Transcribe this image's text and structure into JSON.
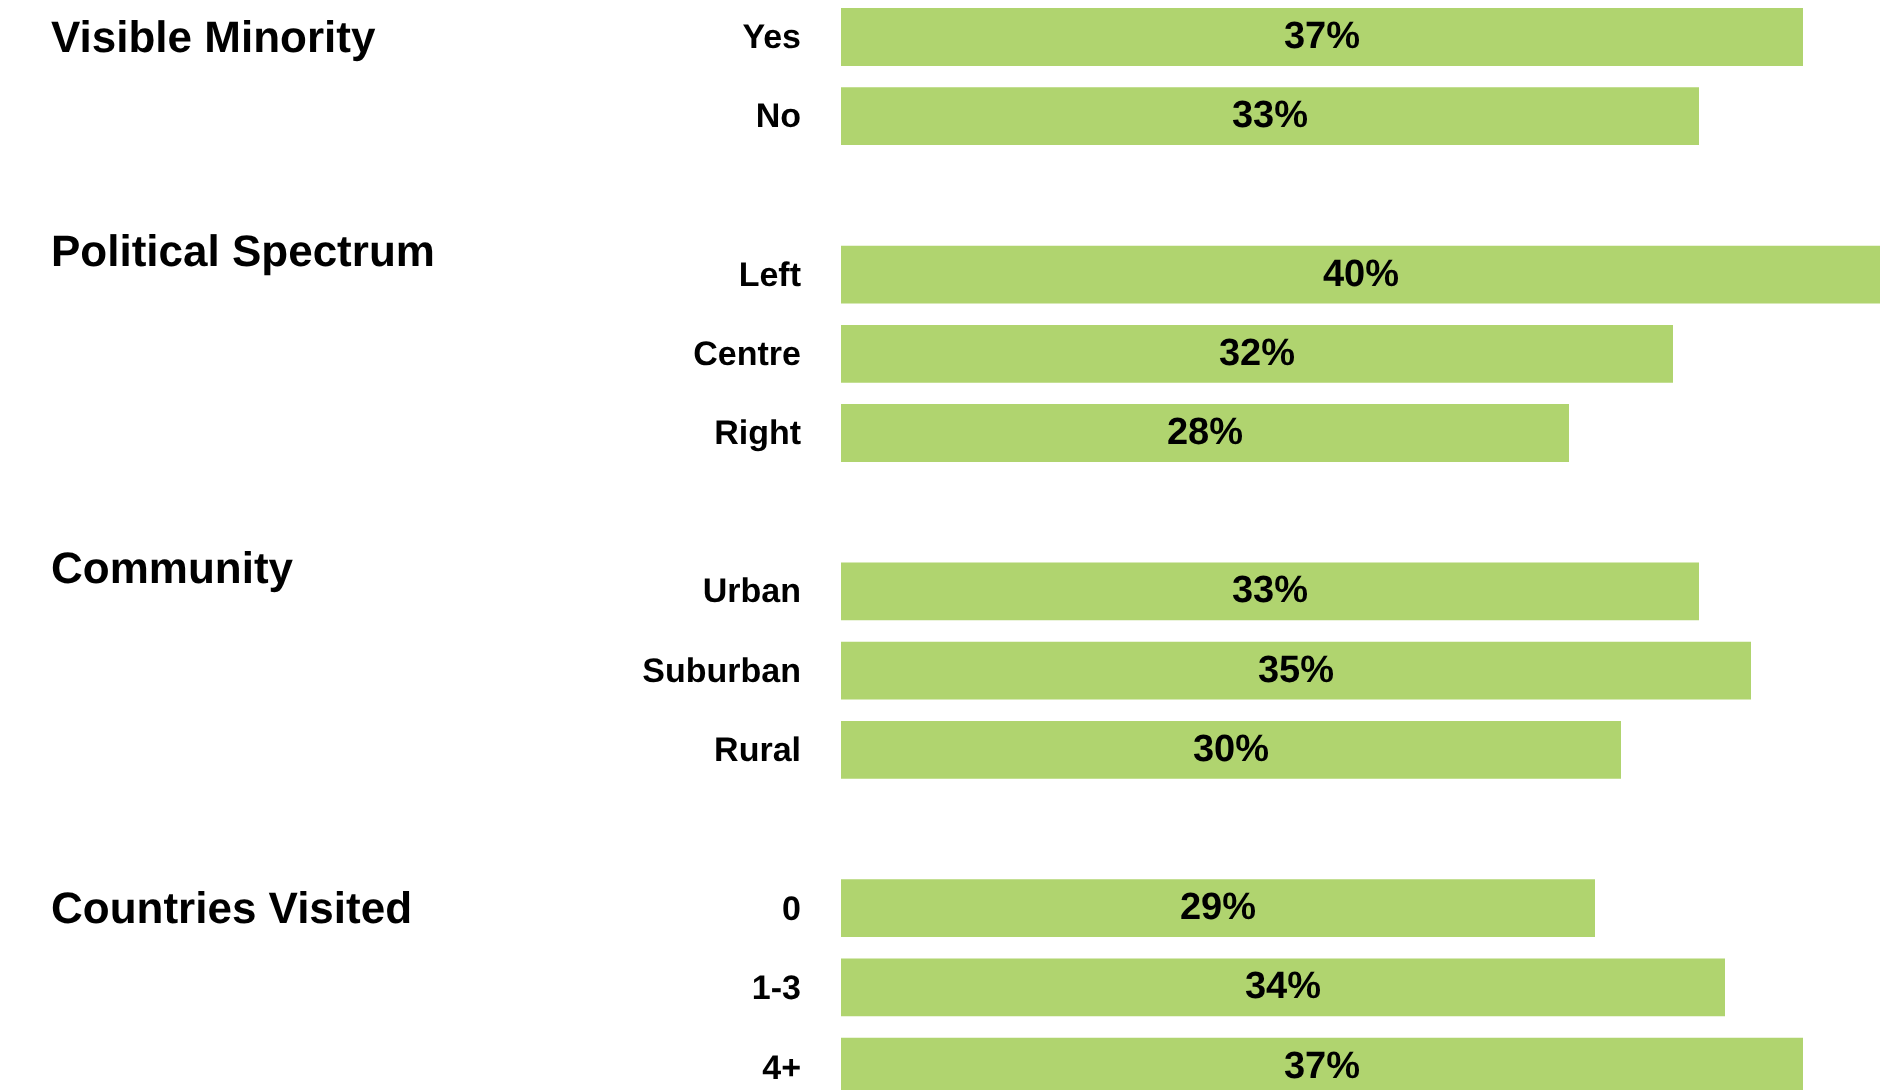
{
  "chart_data": {
    "type": "bar",
    "orientation": "horizontal",
    "categories": [
      "Yes",
      "No",
      null,
      "Left",
      "Centre",
      "Right",
      null,
      "Urban",
      "Suburban",
      "Rural",
      null,
      "0",
      "1-3",
      "4+"
    ],
    "values": [
      37,
      33,
      null,
      40,
      32,
      28,
      null,
      33,
      35,
      30,
      null,
      29,
      34,
      37
    ],
    "color": "#b0d46f",
    "value_labels": [
      "37%",
      "33%",
      null,
      "40%",
      "32%",
      "28%",
      null,
      "33%",
      "35%",
      "30%",
      null,
      "29%",
      "34%",
      "37%"
    ],
    "annotations": [
      "Visible Minority",
      "Political Spectrum",
      "Community",
      "Countries Visited"
    ]
  }
}
